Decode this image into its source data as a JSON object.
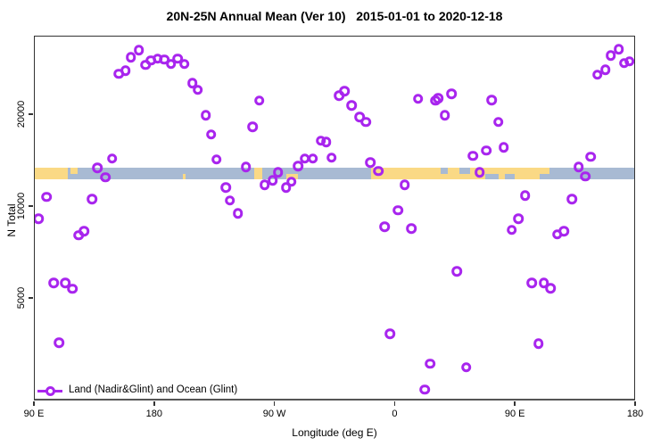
{
  "title": "20N-25N Annual Mean (Ver 10)   2015-01-01 to 2020-12-18",
  "legend": {
    "label": "Land (Nadir&Glint) and Ocean (Glint)"
  },
  "colors": {
    "marker": "#a825ee",
    "land": "#fad985",
    "ocean": "#a8bad3",
    "axis": "#333333",
    "axis_bottom": "#555555"
  },
  "axes": {
    "x_label": "Longitude (deg E)",
    "y_label": "N Total",
    "x_ticks": [
      {
        "deg": 90,
        "label": "90 E"
      },
      {
        "deg": 180,
        "label": "180"
      },
      {
        "deg": 270,
        "label": "90 W"
      },
      {
        "deg": 360,
        "label": "0"
      },
      {
        "deg": 450,
        "label": "90 E"
      },
      {
        "deg": 540,
        "label": "180"
      }
    ],
    "y_ticks": [
      {
        "value": 20000,
        "label": "20000"
      },
      {
        "value": 10000,
        "label": "10000"
      },
      {
        "value": 5000,
        "label": "5000"
      }
    ]
  },
  "chart_data": {
    "type": "scatter",
    "title": "20N-25N Annual Mean (Ver 10) 2015-01-01 to 2020-12-18",
    "xlabel": "Longitude (deg E)",
    "ylabel": "N Total",
    "x_axis": {
      "kind": "longitude-wrapped",
      "start_deg": 90,
      "end_deg": 540,
      "tick_interval_deg": 90,
      "tick_labels": [
        "90 E",
        "180",
        "90 W",
        "0",
        "90 E",
        "180"
      ]
    },
    "y_axis": {
      "scale": "log",
      "tick_values": [
        5000,
        10000,
        20000
      ],
      "approx_range": [
        2300,
        36000
      ]
    },
    "marker": "open-circle",
    "legend_entry": "Land (Nadir&Glint) and Ocean (Glint)",
    "points": [
      [
        168,
        32700
      ],
      [
        162,
        31000
      ],
      [
        158,
        28000
      ],
      [
        153,
        27300
      ],
      [
        173,
        29200
      ],
      [
        177,
        30200
      ],
      [
        182,
        30600
      ],
      [
        187,
        30400
      ],
      [
        192,
        29400
      ],
      [
        197,
        30600
      ],
      [
        202,
        29400
      ],
      [
        208,
        25500
      ],
      [
        212,
        24200
      ],
      [
        218,
        20000
      ],
      [
        222,
        17300
      ],
      [
        226,
        14300
      ],
      [
        148,
        14400
      ],
      [
        137,
        13400
      ],
      [
        143,
        12500
      ],
      [
        99,
        10800
      ],
      [
        133,
        10600
      ],
      [
        93,
        9160
      ],
      [
        127,
        8340
      ],
      [
        123,
        8070
      ],
      [
        104,
        5640
      ],
      [
        113,
        5640
      ],
      [
        118,
        5390
      ],
      [
        233,
        11600
      ],
      [
        236,
        10500
      ],
      [
        242,
        9540
      ],
      [
        108,
        3590
      ],
      [
        258,
        22300
      ],
      [
        253,
        18300
      ],
      [
        318,
        23200
      ],
      [
        322,
        24000
      ],
      [
        327,
        21500
      ],
      [
        333,
        19700
      ],
      [
        338,
        19000
      ],
      [
        304,
        16500
      ],
      [
        308,
        16300
      ],
      [
        292,
        14400
      ],
      [
        298,
        14400
      ],
      [
        312,
        14500
      ],
      [
        287,
        13600
      ],
      [
        248,
        13500
      ],
      [
        341,
        14000
      ],
      [
        377,
        22600
      ],
      [
        390,
        22300
      ],
      [
        272,
        13000
      ],
      [
        262,
        11800
      ],
      [
        268,
        12200
      ],
      [
        278,
        11600
      ],
      [
        282,
        12100
      ],
      [
        347,
        13100
      ],
      [
        367,
        11800
      ],
      [
        362,
        9740
      ],
      [
        352,
        8620
      ],
      [
        372,
        8510
      ],
      [
        392,
        22700
      ],
      [
        402,
        23500
      ],
      [
        397,
        20000
      ],
      [
        432,
        22400
      ],
      [
        437,
        19000
      ],
      [
        418,
        14700
      ],
      [
        428,
        15300
      ],
      [
        441,
        15700
      ],
      [
        511,
        27100
      ],
      [
        517,
        28200
      ],
      [
        521,
        31400
      ],
      [
        527,
        32900
      ],
      [
        531,
        29600
      ],
      [
        535,
        30000
      ],
      [
        506,
        14600
      ],
      [
        497,
        13500
      ],
      [
        423,
        13000
      ],
      [
        502,
        12600
      ],
      [
        457,
        10900
      ],
      [
        492,
        10600
      ],
      [
        452,
        9160
      ],
      [
        447,
        8400
      ],
      [
        481,
        8130
      ],
      [
        486,
        8340
      ],
      [
        406,
        6160
      ],
      [
        462,
        5640
      ],
      [
        471,
        5640
      ],
      [
        476,
        5420
      ],
      [
        356,
        3840
      ],
      [
        386,
        3060
      ],
      [
        382,
        2520
      ],
      [
        413,
        2980
      ],
      [
        467,
        3560
      ]
    ],
    "map_strip": {
      "description": "land/ocean map strip for the 20N-25N latitude band drawn across the plot",
      "value_top": 13400,
      "value_bottom": 12300,
      "ocean_base_deg": [
        90,
        540
      ],
      "land_full_deg": [
        [
          90,
          115
        ],
        [
          254,
          260
        ],
        [
          342,
          475
        ]
      ],
      "land_top_half_deg": [
        [
          117,
          122
        ]
      ],
      "land_bottom_half_deg": [
        [
          201,
          203
        ],
        [
          278,
          287
        ]
      ],
      "ocean_top_half_deg": [
        [
          394,
          399
        ],
        [
          408,
          416
        ]
      ],
      "ocean_bottom_half_deg": [
        [
          427,
          437
        ],
        [
          442,
          449
        ],
        [
          468,
          475
        ]
      ]
    }
  }
}
